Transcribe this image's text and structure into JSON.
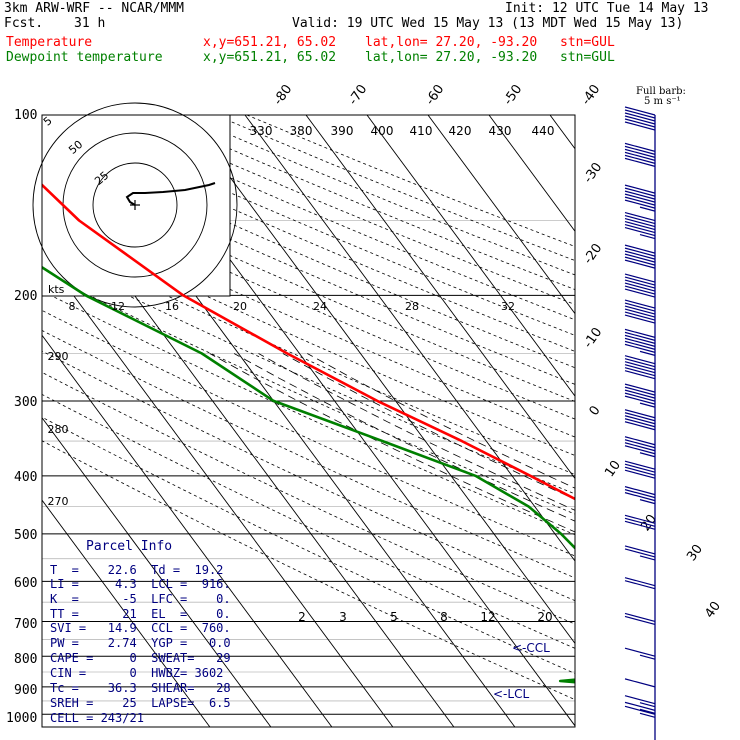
{
  "header": {
    "model": "3km ARW-WRF -- NCAR/MMM",
    "init": "Init: 12 UTC Tue 14 May 13",
    "fcst_label": "Fcst.",
    "fcst_hours": "31 h",
    "valid": "Valid: 19 UTC Wed 15 May 13 (13 MDT Wed 15 May 13)",
    "series": [
      {
        "name": "Temperature",
        "xy": "x,y=651.21, 65.02",
        "latlon": "lat,lon= 27.20, -93.20",
        "stn": "stn=GUL",
        "color": "#ff0000"
      },
      {
        "name": "Dewpoint temperature",
        "xy": "x,y=651.21, 65.02",
        "latlon": "lat,lon= 27.20, -93.20",
        "stn": "stn=GUL",
        "color": "#008000"
      }
    ],
    "barb_note": "Full barb:",
    "barb_unit": "5 m s⁻¹"
  },
  "chart_data": {
    "type": "skew-t",
    "pressure_levels": [
      "100",
      "200",
      "300",
      "400",
      "500",
      "600",
      "700",
      "800",
      "900",
      "1000"
    ],
    "isotherm_labels": [
      "-80",
      "-70",
      "-60",
      "-50",
      "-40",
      "-30",
      "-20",
      "-10",
      "0",
      "10",
      "20",
      "30",
      "40"
    ],
    "theta_labels": [
      "330",
      "380",
      "390",
      "400",
      "410",
      "420",
      "430",
      "440"
    ],
    "theta_left_labels": [
      "290",
      "280",
      "270"
    ],
    "mixing_ratio_labels": [
      "2",
      "3",
      "5",
      "8",
      "12",
      "20"
    ],
    "hodograph": {
      "ring_labels": [
        "5",
        "25",
        "50"
      ],
      "unit": "kts",
      "scale_labels": [
        "8",
        "12",
        "16",
        "20",
        "24",
        "28",
        "32"
      ],
      "trace": [
        [
          0,
          0
        ],
        [
          -5,
          3
        ],
        [
          -8,
          8
        ],
        [
          -2,
          12
        ],
        [
          10,
          12
        ],
        [
          28,
          13
        ],
        [
          50,
          15
        ],
        [
          74,
          20
        ],
        [
          80,
          22
        ]
      ]
    },
    "temperature": {
      "name": "Temperature",
      "points": [
        [
          100,
          -75
        ],
        [
          110,
          -74
        ],
        [
          150,
          -70
        ],
        [
          200,
          -62
        ],
        [
          250,
          -52
        ],
        [
          300,
          -43
        ],
        [
          350,
          -34
        ],
        [
          400,
          -27
        ],
        [
          450,
          -21
        ],
        [
          500,
          -16
        ],
        [
          600,
          -7
        ],
        [
          700,
          1
        ],
        [
          750,
          4
        ],
        [
          800,
          8
        ],
        [
          850,
          12
        ],
        [
          900,
          16
        ],
        [
          930,
          18
        ],
        [
          960,
          20
        ],
        [
          1000,
          24
        ]
      ],
      "color": "#ff0000"
    },
    "dewpoint": {
      "name": "Dewpoint temperature",
      "points": [
        [
          100,
          -95
        ],
        [
          150,
          -88
        ],
        [
          200,
          -78
        ],
        [
          250,
          -66
        ],
        [
          300,
          -60
        ],
        [
          350,
          -47
        ],
        [
          400,
          -36
        ],
        [
          450,
          -31
        ],
        [
          500,
          -29
        ],
        [
          550,
          -28
        ],
        [
          600,
          -29
        ],
        [
          650,
          -31
        ],
        [
          700,
          -27
        ],
        [
          750,
          -16
        ],
        [
          800,
          -10
        ],
        [
          830,
          -18
        ],
        [
          880,
          -47
        ],
        [
          910,
          -30
        ],
        [
          925,
          2
        ],
        [
          940,
          16
        ],
        [
          960,
          19
        ],
        [
          1000,
          20
        ]
      ],
      "color": "#008000"
    },
    "annotations": [
      "<-CCL",
      "<-LCL"
    ],
    "wind_barbs": [
      {
        "p": 100,
        "spd": 14
      },
      {
        "p": 115,
        "spd": 14
      },
      {
        "p": 135,
        "spd": 15
      },
      {
        "p": 150,
        "spd": 15
      },
      {
        "p": 170,
        "spd": 14
      },
      {
        "p": 190,
        "spd": 14
      },
      {
        "p": 210,
        "spd": 14
      },
      {
        "p": 235,
        "spd": 13
      },
      {
        "p": 260,
        "spd": 12
      },
      {
        "p": 290,
        "spd": 11
      },
      {
        "p": 320,
        "spd": 10
      },
      {
        "p": 355,
        "spd": 9
      },
      {
        "p": 390,
        "spd": 8
      },
      {
        "p": 430,
        "spd": 7
      },
      {
        "p": 480,
        "spd": 6
      },
      {
        "p": 540,
        "spd": 5
      },
      {
        "p": 610,
        "spd": 4
      },
      {
        "p": 700,
        "spd": 4
      },
      {
        "p": 800,
        "spd": 3
      },
      {
        "p": 900,
        "spd": 2
      },
      {
        "p": 960,
        "spd": 3
      },
      {
        "p": 985,
        "spd": 3
      },
      {
        "p": 1000,
        "spd": 3
      }
    ]
  },
  "parcel_info": {
    "title": "Parcel Info",
    "rows": [
      "T  =    22.6  Td =  19.2",
      "LI =     4.3  LCL =  916.",
      "K  =      -5  LFC =    0.",
      "TT =      21  EL  =    0.",
      "SVI =   14.9  CCL =  760.",
      "PW =    2.74  YGP =   0.0",
      "CAPE =     0  SWEAT=   29",
      "CIN =      0  HWBZ= 3602",
      "Tc =    36.3  SHEAR=   28",
      "SREH =    25  LAPSE=  6.5",
      "CELL = 243/21"
    ]
  }
}
